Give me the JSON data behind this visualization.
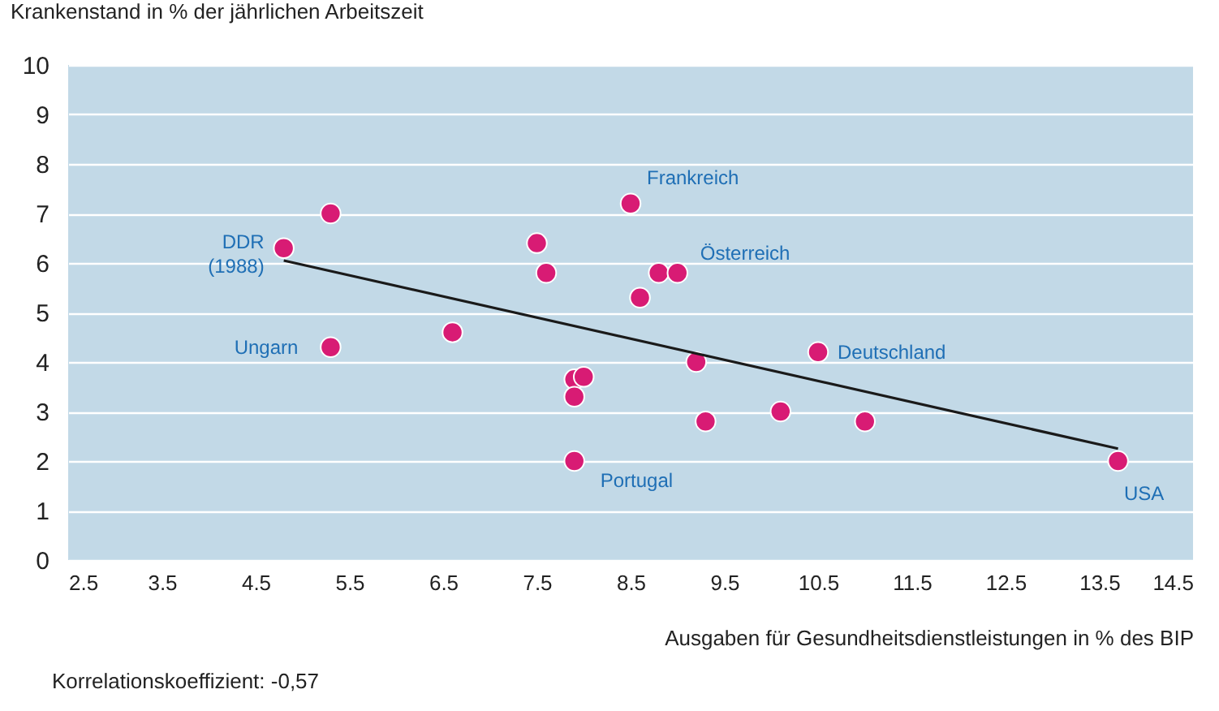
{
  "chart_data": {
    "type": "scatter",
    "xlabel": "Ausgaben für Gesundheitsdienstleistungen in % des BIP",
    "ylabel": "Krankenstand in % der jährlichen Arbeitszeit",
    "xlim": [
      2.5,
      14.5
    ],
    "xticks": [
      2.5,
      3.5,
      4.5,
      5.5,
      6.5,
      7.5,
      8.5,
      9.5,
      10.5,
      11.5,
      12.5,
      13.5,
      14.5
    ],
    "ylim": [
      0,
      10
    ],
    "yticks": [
      0,
      1,
      2,
      3,
      4,
      5,
      6,
      7,
      8,
      9,
      10
    ],
    "grid": "y",
    "series": [
      {
        "marker": "circle",
        "color": "#d81b74",
        "x": [
          4.8,
          5.3,
          5.3,
          6.6,
          7.5,
          7.6,
          7.9,
          8.0,
          7.9,
          7.9,
          8.5,
          8.6,
          8.8,
          9.0,
          9.2,
          9.3,
          10.1,
          10.5,
          11.0,
          13.7
        ],
        "values": [
          6.3,
          7.0,
          4.3,
          4.6,
          6.4,
          5.8,
          3.65,
          3.7,
          3.3,
          2.0,
          7.2,
          5.3,
          5.8,
          5.8,
          4.0,
          2.8,
          3.0,
          4.2,
          2.8,
          2.0
        ]
      },
      {
        "type": "line",
        "color": "#1a1a1a",
        "x": [
          4.8,
          13.7
        ],
        "values": [
          6.05,
          2.25
        ]
      }
    ],
    "annotations": [
      {
        "text": "DDR\n(1988)",
        "x": 4.8,
        "y": 6.3
      },
      {
        "text": "Frankreich",
        "x": 8.5,
        "y": 7.2
      },
      {
        "text": "Österreich",
        "x": 9.0,
        "y": 5.8
      },
      {
        "text": "Deutschland",
        "x": 10.5,
        "y": 4.2
      },
      {
        "text": "Portugal",
        "x": 7.9,
        "y": 2.0
      },
      {
        "text": "USA",
        "x": 13.7,
        "y": 2.0
      },
      {
        "text": "Ungarn",
        "x": 5.3,
        "y": 4.3
      },
      "Korrelationskoeffizient: -0,57"
    ]
  }
}
